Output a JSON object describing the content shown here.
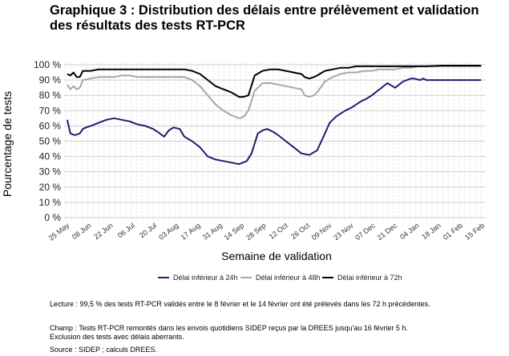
{
  "title_line1": "Graphique 3 : Distribution des délais entre prélèvement et validation",
  "title_line2": "des résultats des tests RT-PCR",
  "chart_data": {
    "type": "line",
    "xlabel": "Semaine de validation",
    "ylabel": "Pourcentage de tests",
    "ylim": [
      0,
      100
    ],
    "y_ticks": [
      0,
      10,
      20,
      30,
      40,
      50,
      60,
      70,
      80,
      90,
      100
    ],
    "y_tick_suffix": " %",
    "x_tick_labels": [
      "25 May",
      "08 Jun",
      "22 Jun",
      "06 Jul",
      "20 Jul",
      "03 Aug",
      "17 Aug",
      "31 Aug",
      "14 Sep",
      "28 Sep",
      "12 Oct",
      "26 Oct",
      "09 Nov",
      "23 Nov",
      "07 Dec",
      "21 Dec",
      "04 Jan",
      "18 Jan",
      "01 Feb",
      "15 Feb"
    ],
    "x_range_days": [
      -2,
      268
    ],
    "grid": true,
    "legend_position": "bottom",
    "series": [
      {
        "name": "Délai inférieur à 24h",
        "color": "#1b1f6b",
        "x_days": [
          0,
          2,
          5,
          8,
          10,
          12,
          15,
          20,
          25,
          30,
          35,
          40,
          45,
          50,
          55,
          58,
          62,
          65,
          68,
          72,
          75,
          80,
          85,
          90,
          95,
          100,
          105,
          110,
          115,
          118,
          122,
          125,
          128,
          132,
          135,
          140,
          145,
          150,
          155,
          160,
          165,
          168,
          172,
          175,
          178,
          182,
          185,
          188,
          192,
          195,
          200,
          205,
          210,
          215,
          220,
          222,
          226,
          228,
          230,
          232,
          235,
          240,
          245,
          250,
          255,
          260,
          265
        ],
        "y": [
          64,
          55,
          54,
          55,
          58,
          59,
          60,
          62,
          64,
          65,
          64,
          63,
          61,
          60,
          58,
          56,
          53,
          57,
          59,
          58,
          53,
          50,
          46,
          40,
          38,
          37,
          36,
          35,
          37,
          42,
          55,
          57,
          58,
          56,
          54,
          50,
          46,
          42,
          41,
          44,
          55,
          62,
          66,
          68,
          70,
          72,
          74,
          76,
          78,
          80,
          84,
          88,
          85,
          89,
          91,
          91,
          90,
          91,
          90,
          90,
          90,
          90,
          90,
          90,
          90,
          90,
          90
        ]
      },
      {
        "name": "Délai inférieur à 48h",
        "color": "#a6a6a6",
        "x_days": [
          0,
          2,
          4,
          6,
          8,
          10,
          15,
          20,
          25,
          30,
          35,
          40,
          45,
          50,
          55,
          60,
          65,
          70,
          75,
          80,
          85,
          90,
          95,
          100,
          105,
          110,
          113,
          116,
          120,
          125,
          130,
          135,
          140,
          145,
          150,
          152,
          155,
          158,
          160,
          165,
          170,
          175,
          180,
          185,
          190,
          195,
          200,
          205,
          210,
          215,
          220,
          225,
          230,
          235,
          240,
          250,
          260,
          265
        ],
        "y": [
          87,
          84,
          86,
          84,
          85,
          90,
          91,
          92,
          92,
          92,
          93,
          93,
          92,
          92,
          92,
          92,
          92,
          92,
          92,
          90,
          86,
          80,
          74,
          70,
          67,
          65,
          66,
          70,
          83,
          88,
          88,
          87,
          86,
          85,
          84,
          80,
          79,
          80,
          82,
          89,
          92,
          94,
          95,
          95,
          96,
          96,
          97,
          97,
          97,
          98,
          98,
          99,
          99,
          99,
          99,
          99,
          99,
          99
        ]
      },
      {
        "name": "Délai inférieur à 72h",
        "color": "#000000",
        "x_days": [
          0,
          2,
          4,
          6,
          8,
          10,
          15,
          20,
          25,
          30,
          35,
          40,
          45,
          50,
          55,
          60,
          65,
          70,
          75,
          80,
          85,
          90,
          95,
          100,
          105,
          110,
          113,
          116,
          120,
          125,
          130,
          135,
          140,
          145,
          150,
          152,
          155,
          158,
          160,
          165,
          170,
          175,
          180,
          185,
          190,
          195,
          200,
          205,
          210,
          220,
          230,
          240,
          250,
          260,
          265
        ],
        "y": [
          94,
          93,
          95,
          92,
          92,
          96,
          96,
          97,
          97,
          97,
          97,
          97,
          97,
          97,
          97,
          97,
          97,
          97,
          97,
          96,
          94,
          90,
          86,
          84,
          82,
          79,
          79,
          80,
          93,
          96,
          97,
          97,
          96,
          95,
          94,
          92,
          91,
          92,
          93,
          96,
          97,
          98,
          98,
          99,
          99,
          99,
          99,
          99,
          99,
          99,
          99,
          99.5,
          99.5,
          99.5,
          99.5
        ]
      }
    ]
  },
  "notes": {
    "lecture": "Lecture : 99,5 % des tests RT-PCR validés entre le 8 février et le 14 février ont été prélevés dans les 72 h précédentes.",
    "champ_line1": "Champ : Tests RT-PCR remontés dans les envois quotidiens SIDEP reçus par la DREES jusqu'au 16 février 5 h.",
    "champ_line2": "Exclusion des tests avec délais aberrants.",
    "source": "Source : SIDEP ; calculs DREES."
  }
}
